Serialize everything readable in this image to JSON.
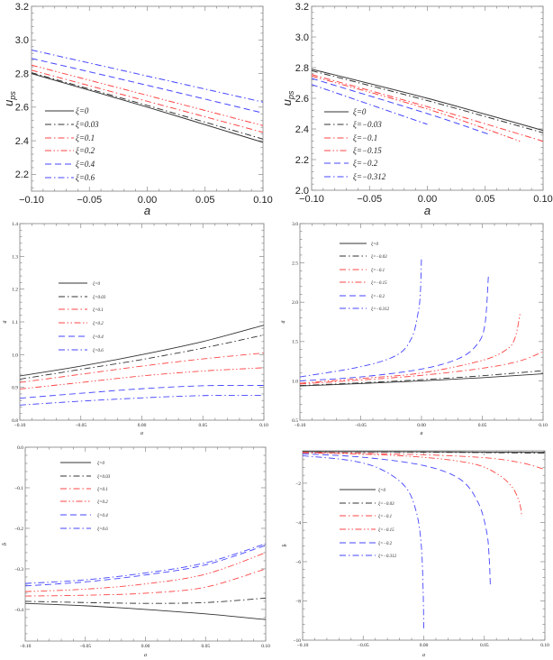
{
  "chart_data": [
    {
      "type": "line",
      "xlabel": "a",
      "ylabel": "u_ps",
      "xlim": [
        -0.1,
        0.1
      ],
      "ylim": [
        2.1,
        3.2
      ],
      "xticks": [
        -0.1,
        -0.05,
        0,
        0.05,
        0.1
      ],
      "xtick_labels": [
        "−0.10",
        "−0.05",
        "0.00",
        "0.05",
        "0.10"
      ],
      "yticks": [
        2.2,
        2.4,
        2.6,
        2.8,
        3.0,
        3.2
      ],
      "ytick_labels": [
        "2.2",
        "2.4",
        "2.6",
        "2.8",
        "3.0",
        "3.2"
      ],
      "legend_position": "lower-left",
      "series": [
        {
          "name": "ξ=0",
          "color": "#333333",
          "style": "solid",
          "x": [
            -0.1,
            0,
            0.1
          ],
          "y": [
            2.8,
            2.6,
            2.39
          ]
        },
        {
          "name": "ξ=0.03",
          "color": "#333333",
          "style": "dashdot",
          "x": [
            -0.1,
            0,
            0.1
          ],
          "y": [
            2.805,
            2.61,
            2.41
          ]
        },
        {
          "name": "ξ=0.1",
          "color": "#ff4444",
          "style": "dashdot",
          "x": [
            -0.1,
            0,
            0.1
          ],
          "y": [
            2.82,
            2.635,
            2.45
          ]
        },
        {
          "name": "ξ=0.2",
          "color": "#ff4444",
          "style": "dashdotdot",
          "x": [
            -0.1,
            0,
            0.1
          ],
          "y": [
            2.85,
            2.67,
            2.49
          ]
        },
        {
          "name": "ξ=0.4",
          "color": "#4444ff",
          "style": "dashed",
          "x": [
            -0.1,
            0,
            0.1
          ],
          "y": [
            2.89,
            2.73,
            2.565
          ]
        },
        {
          "name": "ξ=0.6",
          "color": "#4444ff",
          "style": "dashdot",
          "x": [
            -0.1,
            0,
            0.1
          ],
          "y": [
            2.94,
            2.785,
            2.63
          ]
        }
      ]
    },
    {
      "type": "line",
      "xlabel": "a",
      "ylabel": "u_ps",
      "xlim": [
        -0.1,
        0.1
      ],
      "ylim": [
        2.0,
        3.2
      ],
      "xticks": [
        -0.1,
        -0.05,
        0,
        0.05,
        0.1
      ],
      "xtick_labels": [
        "−0.10",
        "−0.05",
        "0.00",
        "0.05",
        "0.10"
      ],
      "yticks": [
        2.0,
        2.2,
        2.4,
        2.6,
        2.8,
        3.0,
        3.2
      ],
      "ytick_labels": [
        "2.0",
        "2.2",
        "2.4",
        "2.6",
        "2.8",
        "3.0",
        "3.2"
      ],
      "legend_position": "lower-left",
      "series": [
        {
          "name": "ξ=0",
          "color": "#333333",
          "style": "solid",
          "x": [
            -0.1,
            0,
            0.1
          ],
          "y": [
            2.79,
            2.6,
            2.39
          ]
        },
        {
          "name": "ξ=−0.03",
          "color": "#333333",
          "style": "dashdot",
          "x": [
            -0.1,
            0,
            0.1
          ],
          "y": [
            2.78,
            2.585,
            2.375
          ]
        },
        {
          "name": "ξ=−0.1",
          "color": "#ff4444",
          "style": "dashdot",
          "x": [
            -0.1,
            0,
            0.1
          ],
          "y": [
            2.755,
            2.545,
            2.32
          ]
        },
        {
          "name": "ξ=−0.15",
          "color": "#ff4444",
          "style": "dashdotdot",
          "x": [
            -0.1,
            0,
            0.08
          ],
          "y": [
            2.745,
            2.53,
            2.32
          ]
        },
        {
          "name": "ξ=−0.2",
          "color": "#4444ff",
          "style": "dashed",
          "x": [
            -0.1,
            0,
            0.055
          ],
          "y": [
            2.73,
            2.5,
            2.36
          ]
        },
        {
          "name": "ξ=−0.312",
          "color": "#4444ff",
          "style": "dashdot",
          "x": [
            -0.1,
            0
          ],
          "y": [
            2.69,
            2.43
          ]
        }
      ]
    },
    {
      "type": "line",
      "xlabel": "a",
      "ylabel": "ā",
      "xlim": [
        -0.1,
        0.1
      ],
      "ylim": [
        0.8,
        1.4
      ],
      "xticks": [
        -0.1,
        -0.05,
        0,
        0.05,
        0.1
      ],
      "xtick_labels": [
        "−0.10",
        "−0.05",
        "0.00",
        "0.05",
        "0.10"
      ],
      "yticks": [
        0.8,
        0.9,
        1.0,
        1.1,
        1.2,
        1.3,
        1.4
      ],
      "ytick_labels": [
        "0.8",
        "0.9",
        "1.0",
        "1.1",
        "1.2",
        "1.3",
        "1.4"
      ],
      "legend_position": "upper-left",
      "series": [
        {
          "name": "ξ=0",
          "color": "#333333",
          "style": "solid",
          "x": [
            -0.1,
            -0.05,
            0,
            0.05,
            0.1
          ],
          "y": [
            0.935,
            0.965,
            1.0,
            1.04,
            1.09
          ]
        },
        {
          "name": "ξ=0.03",
          "color": "#333333",
          "style": "dashdot",
          "x": [
            -0.1,
            -0.05,
            0,
            0.05,
            0.1
          ],
          "y": [
            0.925,
            0.955,
            0.985,
            1.02,
            1.06
          ]
        },
        {
          "name": "ξ=0.1",
          "color": "#ff4444",
          "style": "dashdot",
          "x": [
            -0.1,
            -0.05,
            0,
            0.05,
            0.1
          ],
          "y": [
            0.915,
            0.94,
            0.965,
            0.987,
            1.005
          ]
        },
        {
          "name": "ξ=0.2",
          "color": "#ff4444",
          "style": "dashdotdot",
          "x": [
            -0.1,
            -0.05,
            0,
            0.05,
            0.1
          ],
          "y": [
            0.895,
            0.915,
            0.935,
            0.95,
            0.96
          ]
        },
        {
          "name": "ξ=0.4",
          "color": "#4444ff",
          "style": "dashed",
          "x": [
            -0.1,
            -0.05,
            0,
            0.05,
            0.1
          ],
          "y": [
            0.867,
            0.882,
            0.896,
            0.905,
            0.906
          ]
        },
        {
          "name": "ξ=0.6",
          "color": "#4444ff",
          "style": "dashdot",
          "x": [
            -0.1,
            -0.05,
            0,
            0.05,
            0.1
          ],
          "y": [
            0.846,
            0.858,
            0.868,
            0.875,
            0.876
          ]
        }
      ]
    },
    {
      "type": "line",
      "xlabel": "a",
      "ylabel": "ā",
      "xlim": [
        -0.1,
        0.1
      ],
      "ylim": [
        0.5,
        3.0
      ],
      "xticks": [
        -0.1,
        -0.05,
        0,
        0.05,
        0.1
      ],
      "xtick_labels": [
        "−0.10",
        "−0.05",
        "0.00",
        "0.05",
        "0.10"
      ],
      "yticks": [
        0.5,
        1.0,
        1.5,
        2.0,
        2.5,
        3.0
      ],
      "ytick_labels": [
        "0.5",
        "1.0",
        "1.5",
        "2.0",
        "2.5",
        "3.0"
      ],
      "legend_position": "upper-left",
      "series": [
        {
          "name": "ξ=0",
          "color": "#333333",
          "style": "solid",
          "x": [
            -0.1,
            -0.05,
            0,
            0.05,
            0.1
          ],
          "y": [
            0.935,
            0.965,
            1.0,
            1.04,
            1.09
          ]
        },
        {
          "name": "ξ=−0.03",
          "color": "#333333",
          "style": "dashdot",
          "x": [
            -0.1,
            -0.05,
            0,
            0.05,
            0.1
          ],
          "y": [
            0.94,
            0.975,
            1.015,
            1.065,
            1.13
          ]
        },
        {
          "name": "ξ=−0.1",
          "color": "#ff4444",
          "style": "dashdot",
          "x": [
            -0.1,
            -0.05,
            0,
            0.05,
            0.08,
            0.1
          ],
          "y": [
            0.96,
            1.01,
            1.07,
            1.16,
            1.25,
            1.37
          ]
        },
        {
          "name": "ξ=−0.15",
          "color": "#ff4444",
          "style": "dashdotdot",
          "x": [
            -0.1,
            -0.05,
            0,
            0.05,
            0.07,
            0.077,
            0.081
          ],
          "y": [
            0.97,
            1.03,
            1.1,
            1.26,
            1.4,
            1.55,
            1.85
          ]
        },
        {
          "name": "ξ=−0.2",
          "color": "#4444ff",
          "style": "dashed",
          "x": [
            -0.1,
            -0.05,
            0,
            0.03,
            0.045,
            0.052,
            0.055
          ],
          "y": [
            1.0,
            1.05,
            1.15,
            1.28,
            1.45,
            1.7,
            2.33
          ]
        },
        {
          "name": "ξ=−0.312",
          "color": "#4444ff",
          "style": "dashdot",
          "x": [
            -0.1,
            -0.05,
            -0.02,
            -0.008,
            -0.003,
            -0.001,
            0
          ],
          "y": [
            1.05,
            1.18,
            1.33,
            1.55,
            1.85,
            2.1,
            2.58
          ]
        }
      ]
    },
    {
      "type": "line",
      "xlabel": "a",
      "ylabel": "b̄",
      "xlim": [
        -0.1,
        0.1
      ],
      "ylim": [
        -0.478,
        0.0
      ],
      "xticks": [
        -0.1,
        -0.05,
        0,
        0.05,
        0.1
      ],
      "xtick_labels": [
        "−0.10",
        "−0.05",
        "0.00",
        "0.05",
        "0.10"
      ],
      "yticks": [
        -0.4,
        -0.3,
        -0.2,
        -0.1,
        0.0
      ],
      "ytick_labels": [
        "−0.4",
        "−0.3",
        "−0.2",
        "−0.1",
        "0.0"
      ],
      "legend_position": "upper-left",
      "series": [
        {
          "name": "ξ=0",
          "color": "#333333",
          "style": "solid",
          "x": [
            -0.1,
            -0.05,
            0,
            0.05,
            0.1
          ],
          "y": [
            -0.385,
            -0.391,
            -0.4,
            -0.411,
            -0.425
          ]
        },
        {
          "name": "ξ=0.03",
          "color": "#333333",
          "style": "dashdot",
          "x": [
            -0.1,
            -0.05,
            0,
            0.05,
            0.1
          ],
          "y": [
            -0.38,
            -0.383,
            -0.385,
            -0.383,
            -0.372
          ]
        },
        {
          "name": "ξ=0.1",
          "color": "#ff4444",
          "style": "dashdot",
          "x": [
            -0.1,
            -0.05,
            0,
            0.05,
            0.1
          ],
          "y": [
            -0.367,
            -0.365,
            -0.36,
            -0.345,
            -0.3
          ]
        },
        {
          "name": "ξ=0.2",
          "color": "#ff4444",
          "style": "dashdotdot",
          "x": [
            -0.1,
            -0.05,
            0,
            0.05,
            0.1
          ],
          "y": [
            -0.356,
            -0.35,
            -0.337,
            -0.313,
            -0.26
          ]
        },
        {
          "name": "ξ=0.4",
          "color": "#4444ff",
          "style": "dashed",
          "x": [
            -0.1,
            -0.05,
            0,
            0.05,
            0.1
          ],
          "y": [
            -0.342,
            -0.332,
            -0.315,
            -0.29,
            -0.242
          ]
        },
        {
          "name": "ξ=0.6",
          "color": "#4444ff",
          "style": "dashdot",
          "x": [
            -0.1,
            -0.05,
            0,
            0.05,
            0.1
          ],
          "y": [
            -0.336,
            -0.327,
            -0.31,
            -0.285,
            -0.238
          ]
        }
      ]
    },
    {
      "type": "line",
      "xlabel": "a",
      "ylabel": "b̄",
      "xlim": [
        -0.1,
        0.1
      ],
      "ylim": [
        -10,
        -0.35
      ],
      "xticks": [
        -0.1,
        -0.05,
        0,
        0.05,
        0.1
      ],
      "xtick_labels": [
        "−0.10",
        "−0.05",
        "0.00",
        "0.05",
        "0.10"
      ],
      "yticks": [
        -10,
        -8,
        -6,
        -4,
        -2
      ],
      "ytick_labels": [
        "−10",
        "−8",
        "−6",
        "−4",
        "−2"
      ],
      "legend_position": "center-left",
      "series": [
        {
          "name": "ξ=0",
          "color": "#333333",
          "style": "solid",
          "x": [
            -0.1,
            0,
            0.1
          ],
          "y": [
            -0.39,
            -0.4,
            -0.43
          ]
        },
        {
          "name": "ξ=−0.03",
          "color": "#333333",
          "style": "dashdot",
          "x": [
            -0.1,
            0,
            0.1
          ],
          "y": [
            -0.4,
            -0.42,
            -0.47
          ]
        },
        {
          "name": "ξ=−0.1",
          "color": "#ff4444",
          "style": "dashdot",
          "x": [
            -0.1,
            -0.05,
            0,
            0.05,
            0.08,
            0.1
          ],
          "y": [
            -0.43,
            -0.48,
            -0.55,
            -0.7,
            -0.95,
            -1.3
          ]
        },
        {
          "name": "ξ=−0.15",
          "color": "#ff4444",
          "style": "dashdotdot",
          "x": [
            -0.1,
            -0.05,
            0,
            0.04,
            0.06,
            0.073,
            0.079,
            0.081
          ],
          "y": [
            -0.45,
            -0.52,
            -0.68,
            -1.0,
            -1.5,
            -2.2,
            -3.0,
            -3.7
          ]
        },
        {
          "name": "ξ=−0.2",
          "color": "#4444ff",
          "style": "dashed",
          "x": [
            -0.1,
            -0.05,
            0,
            0.03,
            0.045,
            0.052,
            0.054,
            0.055
          ],
          "y": [
            -0.5,
            -0.68,
            -1.1,
            -1.8,
            -3.0,
            -4.5,
            -5.8,
            -7.3
          ]
        },
        {
          "name": "ξ=−0.312",
          "color": "#4444ff",
          "style": "dashdot",
          "x": [
            -0.1,
            -0.06,
            -0.035,
            -0.015,
            -0.006,
            -0.002,
            -0.0005,
            0
          ],
          "y": [
            -0.6,
            -0.85,
            -1.3,
            -2.2,
            -3.5,
            -5.2,
            -7.5,
            -9.4
          ]
        }
      ]
    }
  ]
}
